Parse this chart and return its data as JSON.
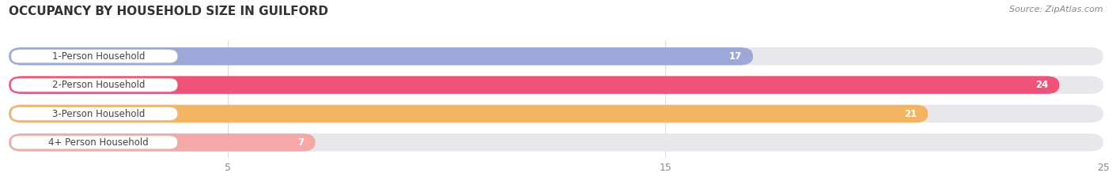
{
  "title": "OCCUPANCY BY HOUSEHOLD SIZE IN GUILFORD",
  "source": "Source: ZipAtlas.com",
  "categories": [
    "1-Person Household",
    "2-Person Household",
    "3-Person Household",
    "4+ Person Household"
  ],
  "values": [
    17,
    24,
    21,
    7
  ],
  "bar_colors": [
    "#9da8d8",
    "#f0527a",
    "#f5b461",
    "#f4a8a8"
  ],
  "xlim": [
    0,
    25
  ],
  "xticks": [
    5,
    15,
    25
  ],
  "background_color": "#ffffff",
  "bar_track_color": "#e8e8ec",
  "label_fontsize": 8.5,
  "value_fontsize": 8.5,
  "title_fontsize": 11
}
